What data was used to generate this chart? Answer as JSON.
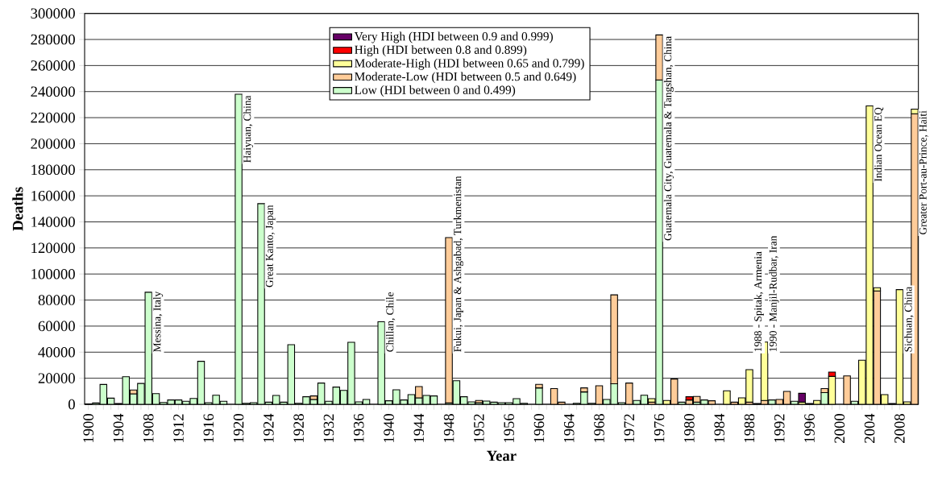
{
  "chart_data": {
    "type": "bar",
    "stacked": true,
    "xlabel": "Year",
    "ylabel": "Deaths",
    "x": [
      1900,
      1901,
      1902,
      1903,
      1904,
      1905,
      1906,
      1907,
      1908,
      1909,
      1910,
      1911,
      1912,
      1913,
      1914,
      1915,
      1916,
      1917,
      1918,
      1919,
      1920,
      1921,
      1922,
      1923,
      1924,
      1925,
      1926,
      1927,
      1928,
      1929,
      1930,
      1931,
      1932,
      1933,
      1934,
      1935,
      1936,
      1937,
      1938,
      1939,
      1940,
      1941,
      1942,
      1943,
      1944,
      1945,
      1946,
      1947,
      1948,
      1949,
      1950,
      1951,
      1952,
      1953,
      1954,
      1955,
      1956,
      1957,
      1958,
      1959,
      1960,
      1961,
      1962,
      1963,
      1964,
      1965,
      1966,
      1967,
      1968,
      1969,
      1970,
      1971,
      1972,
      1973,
      1974,
      1975,
      1976,
      1977,
      1978,
      1979,
      1980,
      1981,
      1982,
      1983,
      1984,
      1985,
      1986,
      1987,
      1988,
      1989,
      1990,
      1991,
      1992,
      1993,
      1994,
      1995,
      1996,
      1997,
      1998,
      1999,
      2000,
      2001,
      2002,
      2003,
      2004,
      2005,
      2006,
      2007,
      2008,
      2009,
      2010
    ],
    "xlim": [
      1899.5,
      2010.5
    ],
    "xticks": [
      1900,
      1904,
      1908,
      1912,
      1916,
      1920,
      1924,
      1928,
      1932,
      1936,
      1940,
      1944,
      1948,
      1952,
      1956,
      1960,
      1964,
      1968,
      1972,
      1976,
      1980,
      1984,
      1988,
      1992,
      1996,
      2000,
      2004,
      2008
    ],
    "ylim": [
      0,
      300000
    ],
    "yticks": [
      0,
      20000,
      40000,
      60000,
      80000,
      100000,
      120000,
      140000,
      160000,
      180000,
      200000,
      220000,
      240000,
      260000,
      280000,
      300000
    ],
    "grid": "y",
    "legend": "top",
    "series": [
      {
        "name": "Low (HDI between 0 and 0.499)",
        "color": "#ccffcc",
        "values": [
          300,
          1000,
          15200,
          4700,
          600,
          21200,
          8000,
          16000,
          86000,
          8200,
          1400,
          3300,
          3300,
          2300,
          4500,
          33000,
          1200,
          7000,
          2300,
          null,
          238000,
          800,
          1200,
          154000,
          1600,
          6800,
          1600,
          45700,
          800,
          5800,
          3700,
          16300,
          2300,
          13200,
          10700,
          47600,
          1800,
          3700,
          null,
          63400,
          2700,
          11100,
          3300,
          7400,
          4900,
          6800,
          6400,
          null,
          1000,
          18100,
          5800,
          1800,
          1200,
          2500,
          1600,
          1200,
          1200,
          4300,
          800,
          null,
          12600,
          null,
          null,
          null,
          null,
          800,
          9500,
          800,
          null,
          3700,
          15700,
          1200,
          null,
          2900,
          7000,
          null,
          249000,
          null,
          null,
          1600,
          null,
          1600,
          3300,
          null,
          null,
          null,
          null,
          null,
          null,
          600,
          null,
          3300,
          null,
          null,
          2300,
          null,
          600,
          null,
          8900,
          null,
          null,
          null,
          2300,
          null,
          null,
          null,
          null,
          600,
          null,
          null,
          null
        ]
      },
      {
        "name": "Moderate-Low (HDI between 0.5 and 0.649)",
        "color": "#ffcc99",
        "values": [
          null,
          null,
          null,
          null,
          null,
          null,
          3000,
          null,
          null,
          null,
          null,
          null,
          null,
          null,
          null,
          null,
          null,
          null,
          null,
          null,
          null,
          null,
          null,
          null,
          null,
          null,
          null,
          null,
          null,
          null,
          2700,
          null,
          null,
          null,
          null,
          null,
          null,
          null,
          null,
          null,
          null,
          null,
          null,
          null,
          8700,
          null,
          null,
          null,
          127000,
          null,
          null,
          null,
          1700,
          null,
          null,
          null,
          null,
          null,
          null,
          null,
          2700,
          null,
          12100,
          1600,
          null,
          null,
          3100,
          null,
          14200,
          null,
          68300,
          null,
          16300,
          null,
          null,
          1600,
          34500,
          null,
          19400,
          null,
          3300,
          4400,
          null,
          2700,
          null,
          null,
          1600,
          null,
          1600,
          null,
          2900,
          null,
          3700,
          9900,
          null,
          null,
          null,
          null,
          3100,
          null,
          null,
          21800,
          null,
          null,
          null,
          87000,
          null,
          null,
          null,
          null,
          223000
        ]
      },
      {
        "name": "Moderate-High (HDI between 0.65 and 0.799)",
        "color": "#ffff99",
        "values": [
          null,
          null,
          null,
          null,
          null,
          null,
          null,
          null,
          null,
          null,
          null,
          null,
          null,
          null,
          null,
          null,
          null,
          null,
          null,
          null,
          null,
          null,
          null,
          null,
          null,
          null,
          null,
          null,
          null,
          null,
          null,
          null,
          null,
          null,
          null,
          null,
          null,
          null,
          null,
          null,
          null,
          null,
          null,
          null,
          null,
          null,
          null,
          null,
          null,
          null,
          null,
          null,
          null,
          null,
          null,
          null,
          null,
          null,
          null,
          null,
          null,
          null,
          null,
          null,
          null,
          null,
          null,
          null,
          null,
          null,
          null,
          null,
          null,
          null,
          null,
          2700,
          null,
          2900,
          null,
          null,
          null,
          null,
          null,
          null,
          null,
          10300,
          null,
          4900,
          25000,
          null,
          44900,
          null,
          null,
          null,
          null,
          1600,
          null,
          2900,
          null,
          21400,
          null,
          null,
          null,
          33800,
          229000,
          2500,
          7400,
          null,
          88000,
          1800,
          3500
        ]
      },
      {
        "name": "High (HDI between 0.8 and 0.899)",
        "color": "#ff0000",
        "values": [
          null,
          null,
          null,
          null,
          null,
          null,
          null,
          null,
          null,
          null,
          null,
          null,
          null,
          null,
          null,
          null,
          null,
          null,
          null,
          null,
          null,
          null,
          null,
          null,
          null,
          null,
          null,
          null,
          null,
          null,
          null,
          null,
          null,
          null,
          null,
          null,
          null,
          null,
          null,
          null,
          null,
          null,
          null,
          null,
          null,
          null,
          null,
          null,
          null,
          null,
          null,
          null,
          null,
          null,
          null,
          null,
          null,
          null,
          null,
          null,
          null,
          null,
          null,
          null,
          null,
          null,
          null,
          null,
          null,
          null,
          null,
          null,
          null,
          null,
          null,
          null,
          null,
          null,
          null,
          null,
          2500,
          null,
          null,
          null,
          null,
          null,
          null,
          null,
          null,
          null,
          null,
          null,
          null,
          null,
          null,
          null,
          null,
          null,
          null,
          3300,
          null,
          null,
          null,
          null,
          null,
          null,
          null,
          null,
          null,
          null,
          null
        ]
      },
      {
        "name": "Very High (HDI between 0.9 and 0.999)",
        "color": "#660066",
        "values": [
          null,
          null,
          null,
          null,
          null,
          null,
          null,
          null,
          null,
          null,
          null,
          null,
          null,
          null,
          null,
          null,
          null,
          null,
          null,
          null,
          null,
          null,
          null,
          null,
          null,
          null,
          null,
          null,
          null,
          null,
          null,
          null,
          null,
          null,
          null,
          null,
          null,
          null,
          null,
          null,
          null,
          null,
          null,
          null,
          null,
          null,
          null,
          null,
          null,
          null,
          null,
          null,
          null,
          null,
          null,
          null,
          null,
          null,
          null,
          null,
          null,
          null,
          null,
          null,
          null,
          null,
          null,
          null,
          null,
          null,
          null,
          null,
          null,
          null,
          null,
          null,
          null,
          null,
          null,
          null,
          null,
          null,
          null,
          null,
          null,
          null,
          null,
          null,
          null,
          null,
          null,
          null,
          null,
          null,
          null,
          6800,
          null,
          null,
          null,
          null,
          null,
          null,
          null,
          null,
          null,
          null,
          null,
          null,
          null,
          null,
          null
        ]
      }
    ],
    "annotations": [
      {
        "text": "Messina, Italy",
        "x": 1908,
        "y": 86000
      },
      {
        "text": "Haiyuan, China",
        "x": 1920,
        "y": 238000
      },
      {
        "text": "Great Kanto, Japan",
        "x": 1923,
        "y": 154000
      },
      {
        "text": "Chillan, Chile",
        "x": 1939,
        "y": 63400
      },
      {
        "text": "Fukui, Japan & Ashgabad, Turkmenistan",
        "x": 1948,
        "y": 128000
      },
      {
        "text": "Guatemala City, Guatemala & Tangshan, China",
        "x": 1976,
        "y": 283500
      },
      {
        "text": "1988 - Spitak, Armenia",
        "x": 1988,
        "y": 26600
      },
      {
        "text": "1990 - Manjil-Rudbar, Iran",
        "x": 1990,
        "y": 47800
      },
      {
        "text": "Indian Ocean EQ",
        "x": 2004,
        "y": 229000
      },
      {
        "text": "Sichuan, China",
        "x": 2008,
        "y": 88000
      },
      {
        "text": "Greater Port-au-Prince, Haiti",
        "x": 2010,
        "y": 226500
      }
    ]
  }
}
